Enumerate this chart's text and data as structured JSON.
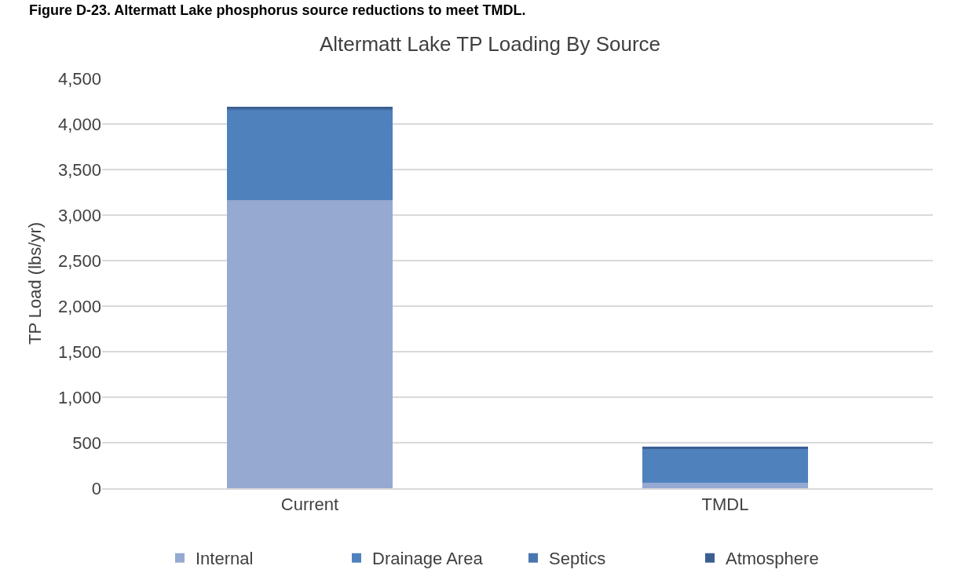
{
  "chart_data": {
    "type": "bar",
    "title": "Altermatt Lake TP Loading By Source",
    "ylabel": "TP Load (lbs/yr)",
    "annotations": [
      "Figure D-23. Altermatt Lake phosphorus source reductions to meet TMDL."
    ],
    "categories": [
      "Current",
      "TMDL"
    ],
    "stacked": true,
    "series": [
      {
        "name": "Internal",
        "color": "#95a9d1",
        "values": [
          3160,
          60
        ]
      },
      {
        "name": "Drainage Area",
        "color": "#4f81bd",
        "values": [
          990,
          370
        ]
      },
      {
        "name": "Septics",
        "color": "#4a76b0",
        "values": [
          10,
          null
        ]
      },
      {
        "name": "Atmosphere",
        "color": "#3b5f91",
        "values": [
          30,
          30
        ]
      }
    ],
    "ylim": [
      0,
      4500
    ],
    "yticks": [
      {
        "value": 0,
        "label": "0"
      },
      {
        "value": 500,
        "label": "500"
      },
      {
        "value": 1000,
        "label": "1,000"
      },
      {
        "value": 1500,
        "label": "1,500"
      },
      {
        "value": 2000,
        "label": "2,000"
      },
      {
        "value": 2500,
        "label": "2,500"
      },
      {
        "value": 3000,
        "label": "3,000"
      },
      {
        "value": 3500,
        "label": "3,500"
      },
      {
        "value": 4000,
        "label": "4,000"
      },
      {
        "value": 4500,
        "label": "4,500"
      }
    ],
    "grid": "y",
    "legend": "bottom"
  }
}
